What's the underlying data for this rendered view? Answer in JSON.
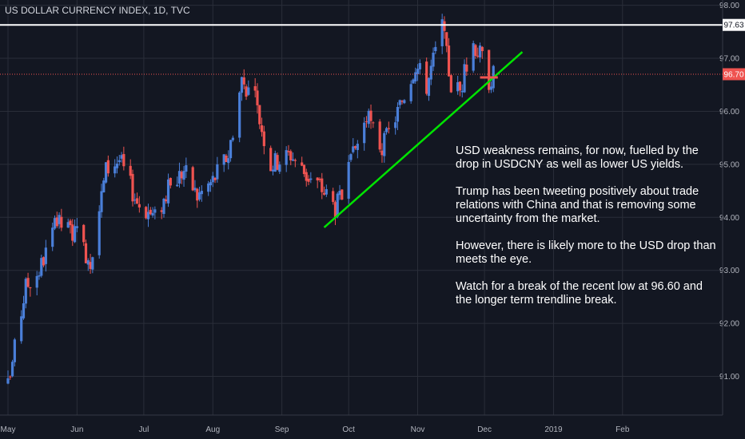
{
  "header": {
    "title": "US DOLLAR CURRENCY INDEX, 1D, TVC"
  },
  "annotation": {
    "paragraphs": [
      "USD weakness remains, for now, fuelled by the drop in USDCNY as well as lower US yields.",
      "Trump has been tweeting positively about trade relations with China and that is removing some uncertainty from the market.",
      "However, there is likely more to the USD drop than meets the eye.",
      "Watch for a break of the recent low at 96.60 and the longer term trendline break."
    ]
  },
  "chart_data": {
    "type": "candlestick",
    "title": "US DOLLAR CURRENCY INDEX, 1D, TVC",
    "ylim": [
      90.27,
      98.1
    ],
    "y_ticks": [
      91.0,
      92.0,
      93.0,
      94.0,
      95.0,
      96.0,
      97.0,
      98.0
    ],
    "y_tick_labels": [
      "91.00",
      "92.00",
      "93.00",
      "94.00",
      "95.00",
      "96.00",
      "97.00",
      "98.00"
    ],
    "x_range": [
      "2018-05-01",
      "2019-02-28"
    ],
    "x_ticks": [
      {
        "date": "2018-05-01",
        "label": "May"
      },
      {
        "date": "2018-06-01",
        "label": "Jun"
      },
      {
        "date": "2018-07-01",
        "label": "Jul"
      },
      {
        "date": "2018-08-01",
        "label": "Aug"
      },
      {
        "date": "2018-09-01",
        "label": "Sep"
      },
      {
        "date": "2018-10-01",
        "label": "Oct"
      },
      {
        "date": "2018-11-01",
        "label": "Nov"
      },
      {
        "date": "2018-12-01",
        "label": "Dec"
      },
      {
        "date": "2019-01-01",
        "label": "2019"
      },
      {
        "date": "2019-02-01",
        "label": "Feb"
      }
    ],
    "close_path": [
      [
        "2018-05-01",
        90.8
      ],
      [
        "2018-05-09",
        92.7
      ],
      [
        "2018-05-15",
        93.0
      ],
      [
        "2018-05-23",
        93.9
      ],
      [
        "2018-05-31",
        93.7
      ],
      [
        "2018-06-07",
        93.2
      ],
      [
        "2018-06-14",
        94.9
      ],
      [
        "2018-06-20",
        95.1
      ],
      [
        "2018-06-28",
        94.3
      ],
      [
        "2018-07-06",
        94.0
      ],
      [
        "2018-07-13",
        94.6
      ],
      [
        "2018-07-19",
        94.9
      ],
      [
        "2018-07-25",
        94.4
      ],
      [
        "2018-08-01",
        94.7
      ],
      [
        "2018-08-08",
        95.2
      ],
      [
        "2018-08-14",
        96.6
      ],
      [
        "2018-08-20",
        96.2
      ],
      [
        "2018-08-27",
        95.0
      ],
      [
        "2018-09-05",
        95.2
      ],
      [
        "2018-09-12",
        94.8
      ],
      [
        "2018-09-18",
        94.6
      ],
      [
        "2018-09-25",
        94.2
      ],
      [
        "2018-09-28",
        94.4
      ],
      [
        "2018-10-04",
        95.3
      ],
      [
        "2018-10-09",
        95.9
      ],
      [
        "2018-10-16",
        95.3
      ],
      [
        "2018-10-23",
        96.0
      ],
      [
        "2018-10-31",
        96.9
      ],
      [
        "2018-11-05",
        96.5
      ],
      [
        "2018-11-12",
        97.6
      ],
      [
        "2018-11-16",
        96.5
      ],
      [
        "2018-11-20",
        96.4
      ],
      [
        "2018-11-26",
        97.3
      ],
      [
        "2018-11-30",
        97.0
      ],
      [
        "2018-12-03",
        96.6
      ],
      [
        "2018-12-05",
        96.7
      ]
    ],
    "hline_high": {
      "value": 97.63,
      "label": "97.63",
      "color": "#ffffff"
    },
    "hline_last": {
      "value": 96.7,
      "label": "96.70",
      "color": "#ef5350"
    },
    "trendline": {
      "color": "#00e400",
      "points": [
        [
          "2018-09-20",
          93.81
        ],
        [
          "2018-12-18",
          97.12
        ]
      ]
    },
    "low_marker": {
      "color": "#ef5350",
      "value": 96.64,
      "from": "2018-11-29",
      "to": "2018-12-07"
    },
    "colors": {
      "background": "#131722",
      "grid": "#2a2e39",
      "up": "#4a7fd9",
      "down": "#ef5350",
      "axis_text": "#b2b5be"
    }
  }
}
